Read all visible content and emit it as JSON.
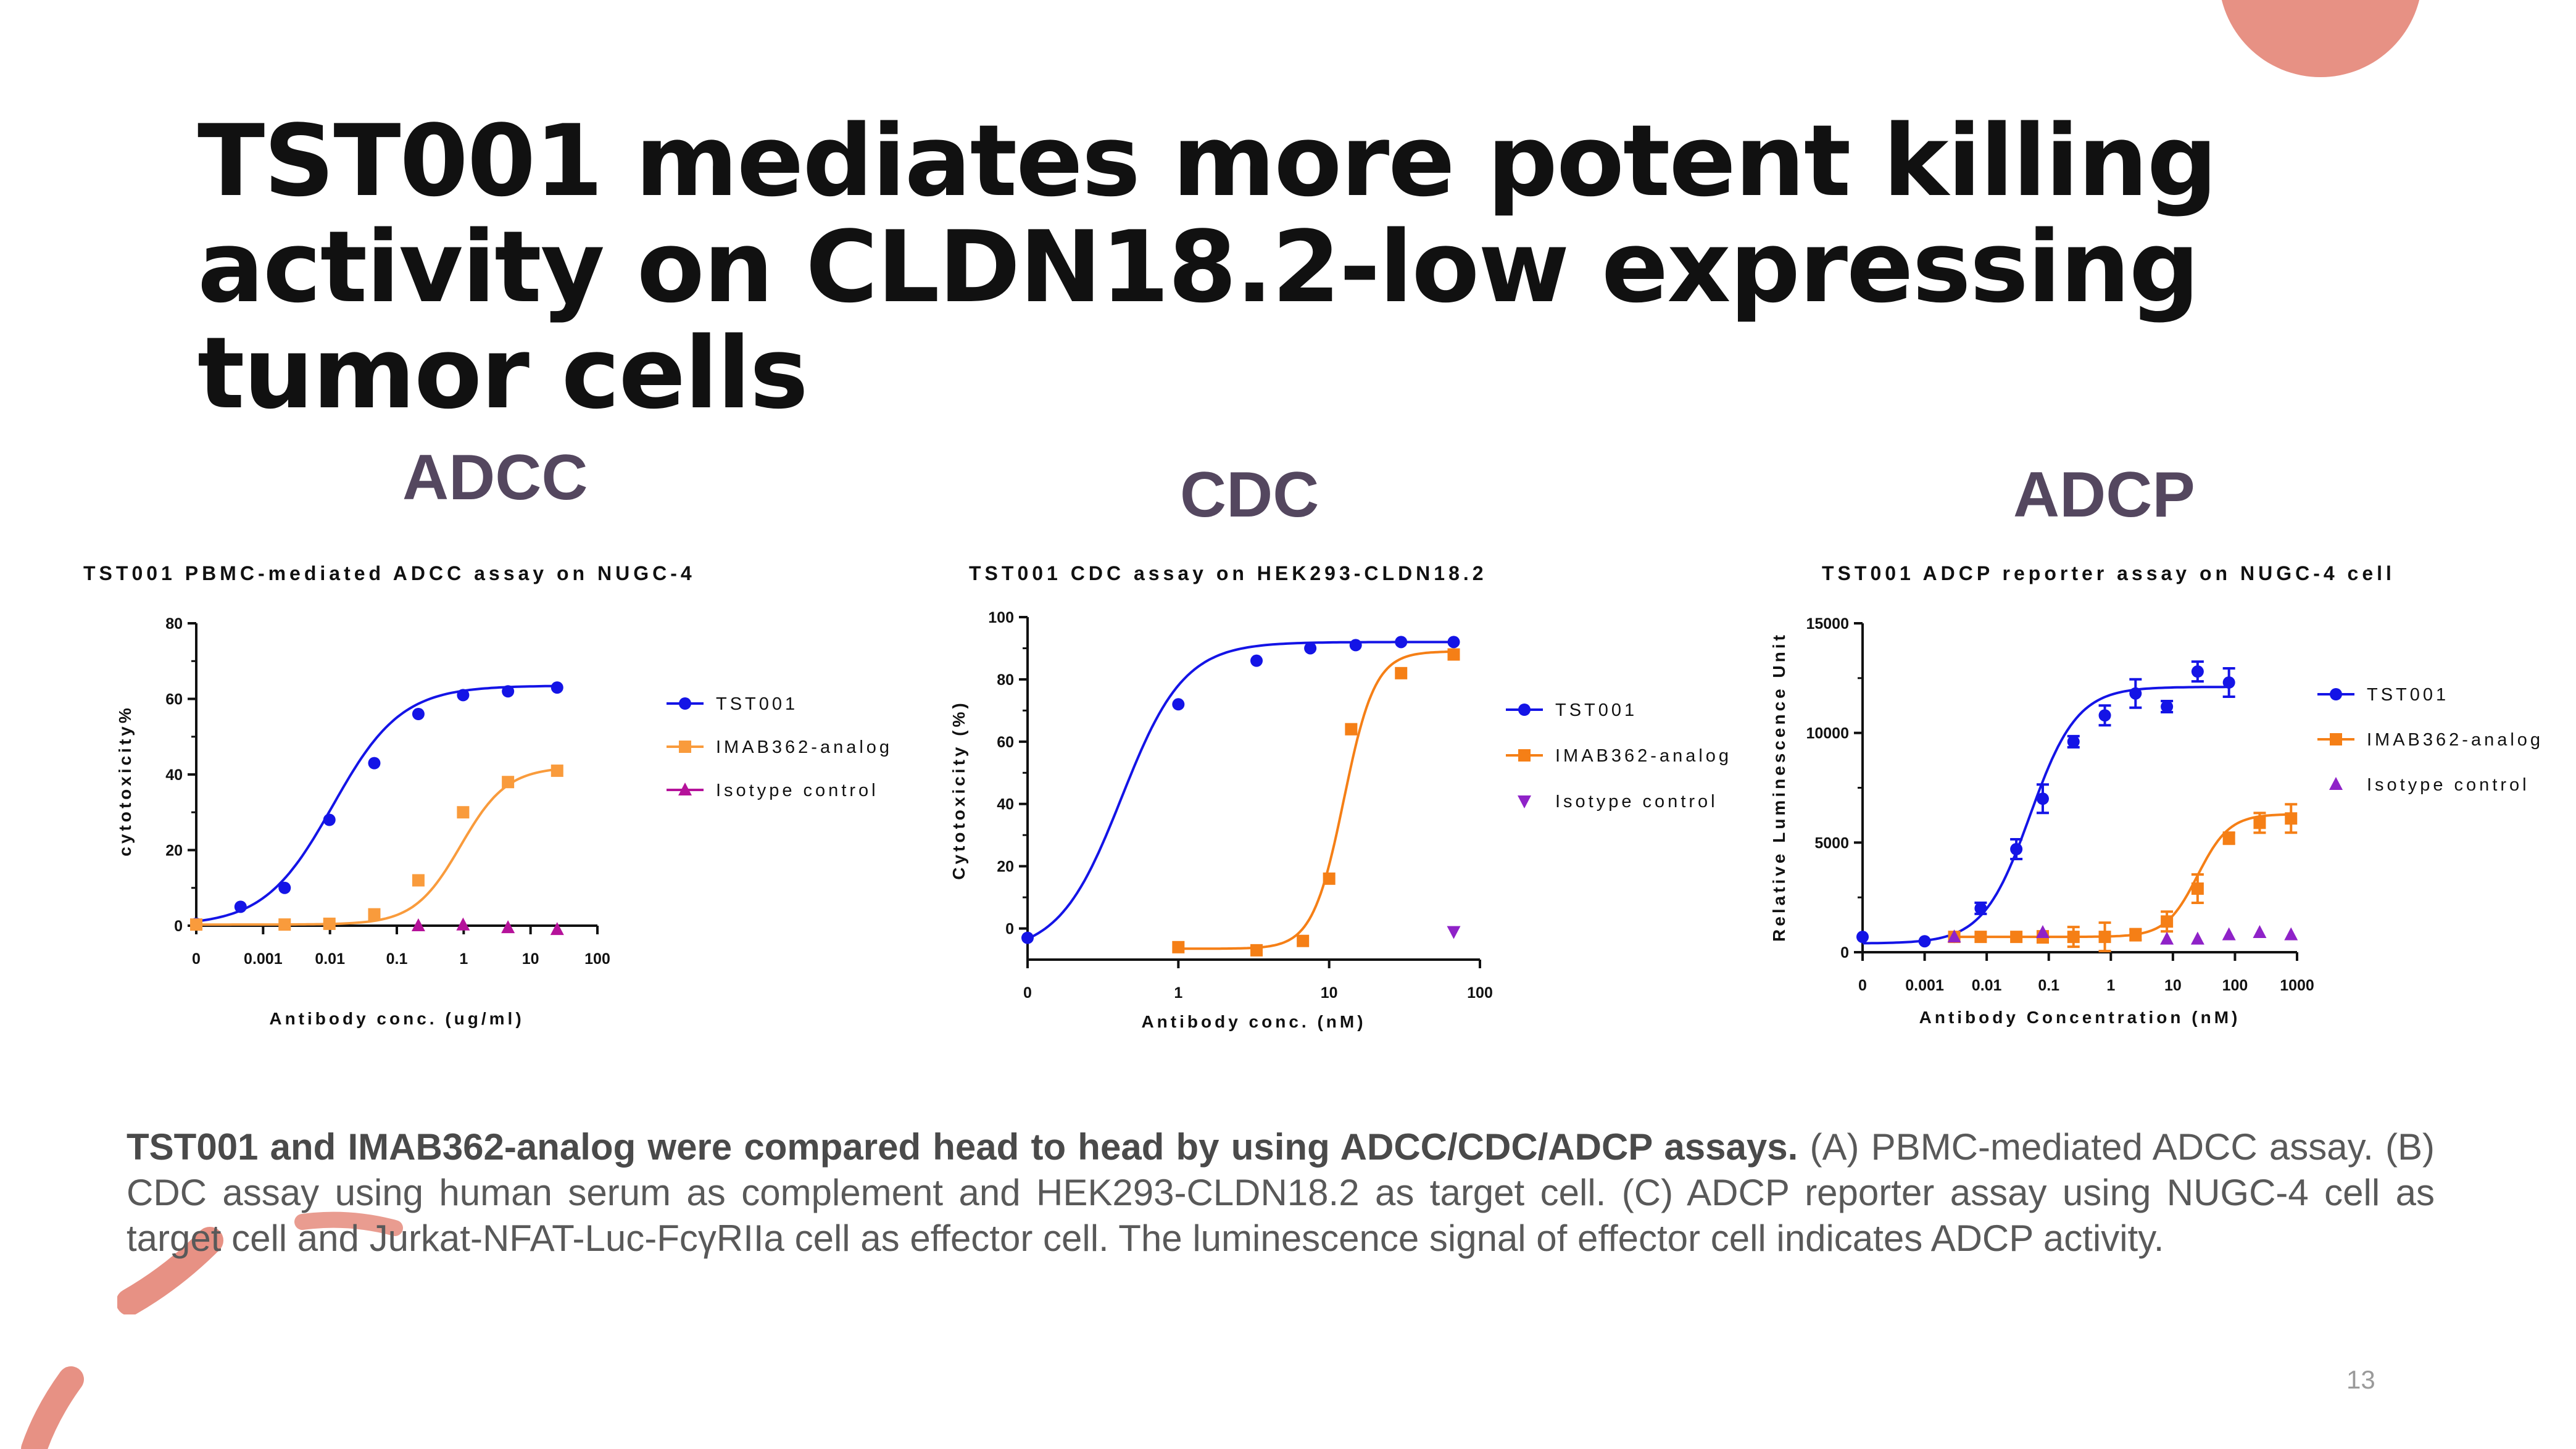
{
  "slide": {
    "title": "TST001 mediates more potent killing activity on CLDN18.2-low expressing tumor cells",
    "page_number": "13",
    "accent_color": "#e79184",
    "heading_color": "#54475f"
  },
  "panels": {
    "adcc": "ADCC",
    "cdc": "CDC",
    "adcp": "ADCP"
  },
  "caption": {
    "bold": "TST001 and IMAB362-analog were compared head to head by using ADCC/CDC/ADCP assays.",
    "text": " (A) PBMC-mediated ADCC assay. (B) CDC assay using human serum as complement and HEK293-CLDN18.2 as target cell. (C) ADCP reporter assay using NUGC-4 cell as target cell and Jurkat-NFAT-Luc-FcγRIIa cell as effector cell. The luminescence signal of effector cell indicates ADCP activity."
  },
  "chart_data": [
    {
      "type": "scatter",
      "title": "TST001 PBMC-mediated ADCC assay on NUGC-4",
      "xlabel": "Antibody conc. (ug/ml)",
      "ylabel": "cytotoxicity%",
      "xscale": "log",
      "x_ticks": [
        "0",
        "0.001",
        "0.01",
        "0.1",
        "1",
        "10",
        "100"
      ],
      "x_tick_values": [
        0.0001,
        0.001,
        0.01,
        0.1,
        1,
        10,
        100
      ],
      "y_ticks": [
        "0",
        "20",
        "40",
        "60",
        "80"
      ],
      "ylim": [
        0,
        80
      ],
      "legend_position": "right",
      "series": [
        {
          "name": "TST001",
          "marker": "circle",
          "color": "#1414e6",
          "x": [
            0.0001,
            0.00046,
            0.0021,
            0.0098,
            0.046,
            0.21,
            0.98,
            4.6,
            25
          ],
          "y": [
            0.5,
            5,
            10,
            28,
            43,
            56,
            61,
            62,
            63
          ]
        },
        {
          "name": "IMAB362-analog",
          "marker": "square",
          "color": "#f99b3c",
          "x": [
            0.0001,
            0.0021,
            0.0098,
            0.046,
            0.21,
            0.98,
            4.6,
            25
          ],
          "y": [
            0.3,
            0.3,
            0.5,
            3,
            12,
            30,
            38,
            41
          ]
        },
        {
          "name": "Isotype control",
          "marker": "triangle",
          "color": "#b5129a",
          "x": [
            0.21,
            0.98,
            4.6,
            25
          ],
          "y": [
            0,
            0.2,
            -0.5,
            -1
          ]
        }
      ]
    },
    {
      "type": "scatter",
      "title": "TST001 CDC assay on HEK293-CLDN18.2",
      "xlabel": "Antibody conc. (nM)",
      "ylabel": "Cytotoxicity (%)",
      "xscale": "log",
      "x_ticks": [
        "0",
        "1",
        "10",
        "100"
      ],
      "x_tick_values": [
        0.1,
        1,
        10,
        100
      ],
      "y_ticks": [
        "0",
        "20",
        "40",
        "60",
        "80",
        "100"
      ],
      "ylim": [
        -10,
        100
      ],
      "legend_position": "right",
      "series": [
        {
          "name": "TST001",
          "marker": "circle",
          "color": "#1414e6",
          "x": [
            0.1,
            1.0,
            3.3,
            7.5,
            15,
            30,
            67
          ],
          "y": [
            -3,
            72,
            86,
            90,
            91,
            92,
            92
          ]
        },
        {
          "name": "IMAB362-analog",
          "marker": "square",
          "color": "#f57f16",
          "x": [
            1.0,
            3.3,
            6.7,
            10,
            14,
            30,
            67
          ],
          "y": [
            -6,
            -7,
            -4,
            16,
            64,
            82,
            88
          ]
        },
        {
          "name": "Isotype control",
          "marker": "triangle-down",
          "color": "#8f22c8",
          "x": [
            67
          ],
          "y": [
            -1
          ]
        }
      ]
    },
    {
      "type": "scatter",
      "title": "TST001 ADCP reporter assay on NUGC-4 cell",
      "xlabel": "Antibody Concentration (nM)",
      "ylabel": "Relative Luminescence Unit",
      "xscale": "log",
      "x_ticks": [
        "0",
        "0.001",
        "0.01",
        "0.1",
        "1",
        "10",
        "100",
        "1000"
      ],
      "x_tick_values": [
        0.0001,
        0.001,
        0.01,
        0.1,
        1,
        10,
        100,
        1000
      ],
      "y_ticks": [
        "0",
        "5000",
        "10000",
        "15000"
      ],
      "ylim": [
        0,
        15000
      ],
      "legend_position": "right",
      "series": [
        {
          "name": "TST001",
          "marker": "circle",
          "color": "#1414e6",
          "x": [
            0.0001,
            0.001,
            0.003,
            0.008,
            0.03,
            0.08,
            0.25,
            0.8,
            2.5,
            8,
            25,
            80
          ],
          "y": [
            700,
            500,
            700,
            2000,
            4700,
            7000,
            9600,
            10800,
            11800,
            11200,
            12800,
            12300
          ]
        },
        {
          "name": "IMAB362-analog",
          "marker": "square",
          "color": "#f57f16",
          "x": [
            0.003,
            0.008,
            0.03,
            0.08,
            0.25,
            0.8,
            2.5,
            8,
            25,
            80,
            250,
            800
          ],
          "y": [
            700,
            700,
            700,
            700,
            700,
            700,
            800,
            1400,
            2900,
            5200,
            5900,
            6100
          ]
        },
        {
          "name": "Isotype control",
          "marker": "triangle",
          "color": "#8f22c8",
          "x": [
            0.003,
            0.08,
            8,
            25,
            80,
            250,
            800
          ],
          "y": [
            700,
            900,
            600,
            600,
            800,
            900,
            800
          ]
        }
      ]
    }
  ]
}
